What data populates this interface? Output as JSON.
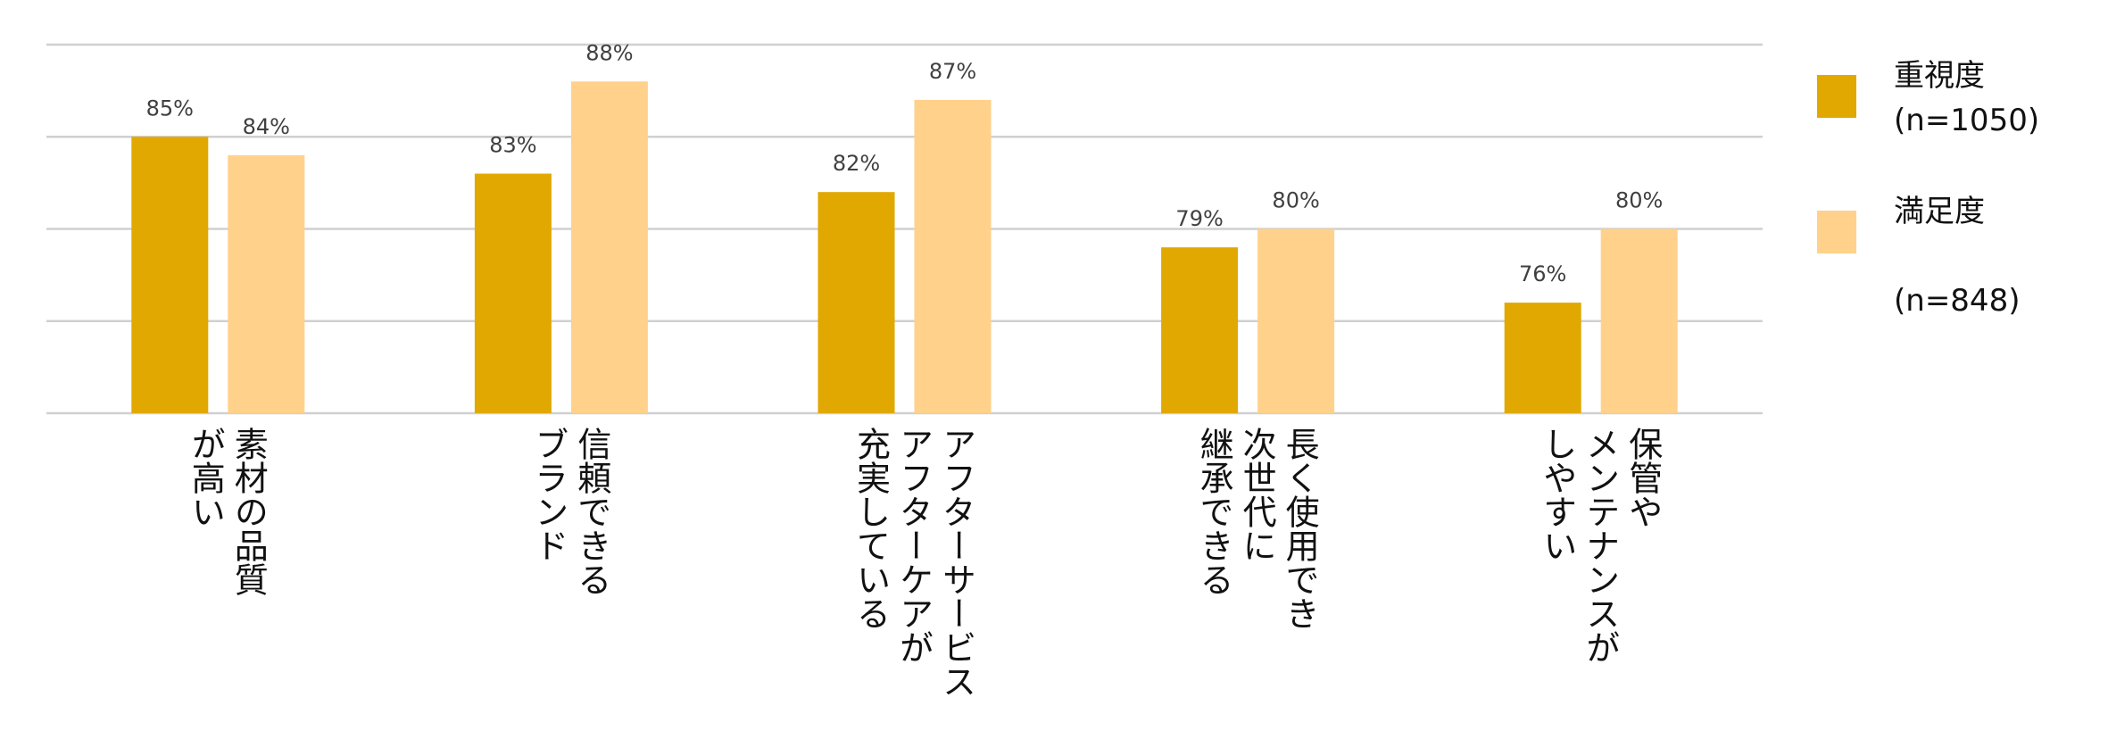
{
  "chart_data": {
    "type": "bar",
    "categories": [
      "素材の品質\nが高い",
      "信頼できる\nブランド",
      "アフターサービス\nアフターケアが\n充実している",
      "長く使用でき\n次世代に\n継承できる",
      "保管や\nメンテナンスが\nしやすい"
    ],
    "series": [
      {
        "name": "重視度\n(n=1050)",
        "values": [
          85,
          83,
          82,
          79,
          76
        ],
        "labels": [
          "85%",
          "83%",
          "82%",
          "79%",
          "76%"
        ],
        "color": "#E0A800"
      },
      {
        "name": "満足度\n\n(n=848)",
        "values": [
          84,
          88,
          87,
          80,
          80
        ],
        "labels": [
          "84%",
          "88%",
          "87%",
          "80%",
          "80%"
        ],
        "color": "#FFD18A"
      }
    ],
    "ylim": [
      70,
      90
    ],
    "grid": true,
    "legend": "right",
    "title": "",
    "xlabel": "",
    "ylabel": ""
  }
}
